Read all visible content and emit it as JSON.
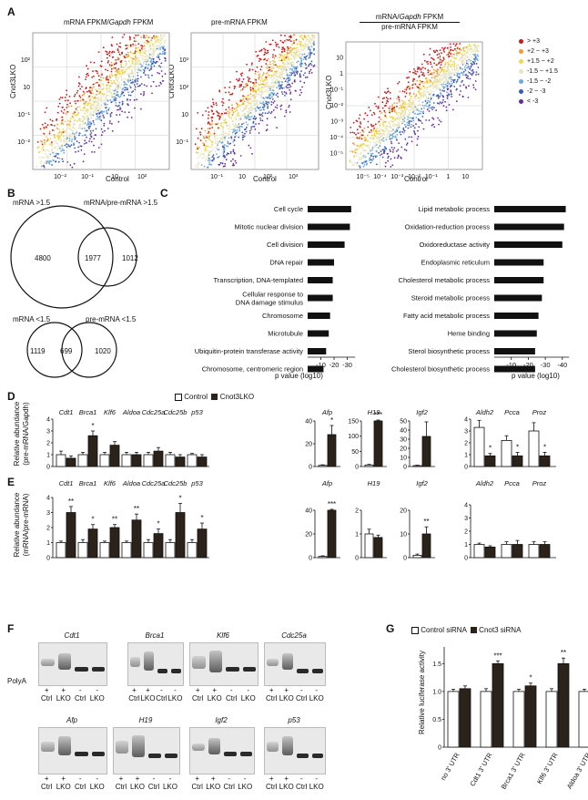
{
  "panels": {
    "A": "A",
    "B": "B",
    "C": "C",
    "D": "D",
    "E": "E",
    "F": "F",
    "G": "G"
  },
  "panelA": {
    "titles": [
      "mRNA FPKM/Gapdh FPKM",
      "pre-mRNA FPKM",
      "mRNA/Gapdh FPKM",
      "pre-mRNA FPKM"
    ],
    "title_parts": {
      "left_a": "mRNA FPKM/",
      "left_gapdh": "Gapdh",
      "left_b": " FPKM",
      "right_top_a": "mRNA/",
      "right_top_gapdh": "Gapdh",
      "right_top_b": " FPKM"
    },
    "xlabel": "Control",
    "ylabel": "Cnot3LKO",
    "legend": [
      {
        "label": "> +3",
        "color": "#c8191c"
      },
      {
        "label": "+2 ~ +3",
        "color": "#f39c35"
      },
      {
        "label": "+1.5 ~ +2",
        "color": "#f0d64b"
      },
      {
        "label": "-1.5 ~ +1.5",
        "color": "#e8e4bd"
      },
      {
        "label": "-1.5 ~ -2",
        "color": "#6fa8dc"
      },
      {
        "label": "-2 ~ -3",
        "color": "#3a5ab0"
      },
      {
        "label": "< -3",
        "color": "#6a2a9a"
      }
    ],
    "plot1": {
      "xticks": [
        "10⁻²",
        "10⁻¹",
        "10",
        "10²"
      ],
      "yticks": [
        "10²",
        "10",
        "10⁻¹",
        "10⁻²"
      ]
    },
    "plot2": {
      "xticks": [
        "10⁻¹",
        "10",
        "10²",
        "10³"
      ],
      "yticks": [
        "10³",
        "10²",
        "10",
        "10⁻¹"
      ]
    },
    "plot3": {
      "xticks": [
        "10⁻⁵",
        "10⁻⁴",
        "10⁻³",
        "10⁻²",
        "10⁻¹",
        "1",
        "10"
      ],
      "yticks": [
        "10",
        "1",
        "10⁻¹",
        "10⁻²",
        "10⁻³",
        "10⁻⁴",
        "10⁻⁵"
      ]
    }
  },
  "panelB": {
    "top": {
      "left_label": "mRNA >1.5",
      "right_label": "mRNA/pre-mRNA >1.5",
      "left_only": "4800",
      "overlap": "1977",
      "right_only": "1012"
    },
    "bottom": {
      "left_label": "mRNA <1.5",
      "right_label": "pre-mRNA <1.5",
      "left_only": "1119",
      "overlap": "699",
      "right_only": "1020"
    }
  },
  "panelC": {
    "xlabel": "p value (log10)",
    "left": {
      "xticks": [
        "-10",
        "-20",
        "-30"
      ],
      "terms": [
        "Cell cycle",
        "Mitotic nuclear division",
        "Cell division",
        "DNA repair",
        "Transcription, DNA-templated",
        "Cellular response to",
        "DNA damage stimulus",
        "Chromosome",
        "Microtubule",
        "Ubiquitin-protein transferase activity",
        "Chromosome, centromeric region"
      ],
      "values": [
        -33,
        -32,
        -28,
        -20,
        -19,
        -19,
        -17,
        -16,
        -14,
        -12
      ]
    },
    "right": {
      "xticks": [
        "-10",
        "-20",
        "-30",
        "-40"
      ],
      "terms": [
        "Lipid metabolic process",
        "Oxidation-reduction process",
        "Oxidoreductase activity",
        "Endoplasmic reticulum",
        "Cholesterol metabolic process",
        "Steroid metabolic process",
        "Fatty acid metabolic process",
        "Heme binding",
        "Sterol biosynthetic process",
        "Cholesterol biosynthetic process"
      ],
      "values": [
        -42,
        -41,
        -40,
        -29,
        -29,
        -28,
        -26,
        -25,
        -24,
        -24
      ]
    }
  },
  "panelD": {
    "legend": {
      "control": "Control",
      "lko": "Cnot3LKO"
    },
    "ylabel1": "Relative abundance",
    "ylabel2": "(pre-mRNA/Gapdh)"
  },
  "panelE": {
    "ylabel1": "Relative abundance",
    "ylabel2": "(mRNA/pre-mRNA)"
  },
  "chart_data": [
    {
      "type": "bar",
      "panel": "D1",
      "ylabel": "Relative abundance (pre-mRNA/Gapdh)",
      "ylim": [
        0,
        4
      ],
      "yticks": [
        "0",
        "1",
        "2",
        "3",
        "4"
      ],
      "categories": [
        "Cdt1",
        "Brca1",
        "Klf6",
        "Aldoa",
        "Cdc25a",
        "Cdc25b",
        "p53"
      ],
      "series": [
        {
          "name": "Control",
          "values": [
            1.0,
            1.0,
            1.0,
            1.0,
            1.0,
            1.0,
            1.0
          ]
        },
        {
          "name": "Cnot3LKO",
          "values": [
            0.7,
            2.6,
            1.8,
            1.0,
            1.3,
            0.8,
            0.8
          ]
        }
      ],
      "errors": [
        [
          0.3,
          0.2,
          0.2,
          0.2,
          0.2,
          0.2,
          0.1
        ],
        [
          0.2,
          0.4,
          0.3,
          0.2,
          0.3,
          0.2,
          0.2
        ]
      ],
      "significance": [
        "",
        "*",
        "",
        "",
        "",
        "",
        ""
      ]
    },
    {
      "type": "bar",
      "panel": "D2",
      "ylim": [
        0,
        40
      ],
      "yticks": [
        "0",
        "20",
        "40"
      ],
      "categories": [
        "Afp"
      ],
      "series": [
        {
          "name": "Control",
          "values": [
            1
          ]
        },
        {
          "name": "Cnot3LKO",
          "values": [
            28
          ]
        }
      ],
      "errors": [
        [
          0.5
        ],
        [
          8
        ]
      ],
      "significance": [
        "*"
      ]
    },
    {
      "type": "bar",
      "panel": "D3",
      "ylim": [
        0,
        150
      ],
      "yticks": [
        "0",
        "50",
        "100",
        "150"
      ],
      "categories": [
        "H19"
      ],
      "series": [
        {
          "name": "Control",
          "values": [
            5
          ]
        },
        {
          "name": "Cnot3LKO",
          "values": [
            150
          ]
        }
      ],
      "errors": [
        [
          2
        ],
        [
          20
        ]
      ],
      "significance": [
        "***"
      ]
    },
    {
      "type": "bar",
      "panel": "D4",
      "ylim": [
        0,
        50
      ],
      "yticks": [
        "0",
        "10",
        "20",
        "30",
        "40",
        "50"
      ],
      "categories": [
        "Igf2"
      ],
      "series": [
        {
          "name": "Control",
          "values": [
            1
          ]
        },
        {
          "name": "Cnot3LKO",
          "values": [
            33
          ]
        }
      ],
      "errors": [
        [
          0.5
        ],
        [
          16
        ]
      ],
      "significance": [
        ""
      ]
    },
    {
      "type": "bar",
      "panel": "D5",
      "ylim": [
        0,
        4
      ],
      "yticks": [
        "0",
        "1",
        "2",
        "3",
        "4"
      ],
      "categories": [
        "Aldh2",
        "Pcca",
        "Proz"
      ],
      "series": [
        {
          "name": "Control",
          "values": [
            3.3,
            2.2,
            3.0
          ]
        },
        {
          "name": "Cnot3LKO",
          "values": [
            0.9,
            0.9,
            0.9
          ]
        }
      ],
      "errors": [
        [
          0.6,
          0.4,
          0.7
        ],
        [
          0.2,
          0.3,
          0.3
        ]
      ],
      "significance": [
        "*",
        "*",
        "*"
      ]
    },
    {
      "type": "bar",
      "panel": "E1",
      "ylabel": "Relative abundance (mRNA/pre-mRNA)",
      "ylim": [
        0,
        4
      ],
      "yticks": [
        "0",
        "1",
        "2",
        "3",
        "4"
      ],
      "categories": [
        "Cdt1",
        "Brca1",
        "Klf6",
        "Aldoa",
        "Cdc25a",
        "Cdc25b",
        "p53"
      ],
      "series": [
        {
          "name": "Control",
          "values": [
            1.0,
            1.0,
            1.0,
            1.0,
            1.0,
            1.0,
            1.0
          ]
        },
        {
          "name": "Cnot3LKO",
          "values": [
            3.0,
            1.9,
            2.0,
            2.5,
            1.6,
            3.0,
            1.9
          ]
        }
      ],
      "errors": [
        [
          0.1,
          0.2,
          0.1,
          0.1,
          0.2,
          0.2,
          0.2
        ],
        [
          0.4,
          0.3,
          0.2,
          0.4,
          0.3,
          0.6,
          0.4
        ]
      ],
      "significance": [
        "**",
        "*",
        "**",
        "**",
        "*",
        "*",
        "*"
      ]
    },
    {
      "type": "bar",
      "panel": "E2",
      "ylim": [
        0,
        40
      ],
      "yticks": [
        "0",
        "20",
        "40"
      ],
      "categories": [
        "Afp"
      ],
      "series": [
        {
          "name": "Control",
          "values": [
            1
          ]
        },
        {
          "name": "Cnot3LKO",
          "values": [
            45
          ]
        }
      ],
      "errors": [
        [
          0.5
        ],
        [
          5
        ]
      ],
      "significance": [
        "***"
      ]
    },
    {
      "type": "bar",
      "panel": "E3",
      "ylim": [
        0,
        2
      ],
      "yticks": [
        "0",
        "1",
        "2"
      ],
      "categories": [
        "H19"
      ],
      "series": [
        {
          "name": "Control",
          "values": [
            1.0
          ]
        },
        {
          "name": "Cnot3LKO",
          "values": [
            0.85
          ]
        }
      ],
      "errors": [
        [
          0.2
        ],
        [
          0.1
        ]
      ],
      "significance": [
        ""
      ]
    },
    {
      "type": "bar",
      "panel": "E4",
      "ylim": [
        0,
        20
      ],
      "yticks": [
        "0",
        "10",
        "20"
      ],
      "categories": [
        "Igf2"
      ],
      "series": [
        {
          "name": "Control",
          "values": [
            1
          ]
        },
        {
          "name": "Cnot3LKO",
          "values": [
            10
          ]
        }
      ],
      "errors": [
        [
          0.5
        ],
        [
          3
        ]
      ],
      "significance": [
        "**"
      ]
    },
    {
      "type": "bar",
      "panel": "E5",
      "ylim": [
        0,
        4
      ],
      "yticks": [
        "0",
        "1",
        "2",
        "3",
        "4"
      ],
      "categories": [
        "Aldh2",
        "Pcca",
        "Proz"
      ],
      "series": [
        {
          "name": "Control",
          "values": [
            1.0,
            1.0,
            1.0
          ]
        },
        {
          "name": "Cnot3LKO",
          "values": [
            0.8,
            1.0,
            1.0
          ]
        }
      ],
      "errors": [
        [
          0.1,
          0.2,
          0.2
        ],
        [
          0.1,
          0.3,
          0.2
        ]
      ],
      "significance": [
        "",
        "",
        ""
      ]
    },
    {
      "type": "bar",
      "panel": "G",
      "ylabel": "Relative luciferase activity",
      "ylim": [
        0,
        1.8
      ],
      "yticks": [
        "0",
        "0.5",
        "1.0",
        "1.5"
      ],
      "categories": [
        "no 3' UTR",
        "Cdt1 3' UTR",
        "Brca1 3' UTR",
        "Klf6 3' UTR",
        "Aldoa 3' UTR"
      ],
      "series": [
        {
          "name": "Control siRNA",
          "values": [
            1.0,
            1.0,
            1.0,
            1.0,
            1.0
          ]
        },
        {
          "name": "Cnot3 siRNA",
          "values": [
            1.05,
            1.5,
            1.1,
            1.5,
            1.25
          ]
        }
      ],
      "errors": [
        [
          0.04,
          0.05,
          0.04,
          0.05,
          0.04
        ],
        [
          0.05,
          0.05,
          0.05,
          0.1,
          0.08
        ]
      ],
      "significance": [
        "",
        "***",
        "*",
        "**",
        "*"
      ]
    }
  ],
  "panelF": {
    "gels": [
      {
        "gene": "Cdt1"
      },
      {
        "gene": "Brca1"
      },
      {
        "gene": "Klf6"
      },
      {
        "gene": "Cdc25a"
      },
      {
        "gene": "Afp"
      },
      {
        "gene": "H19"
      },
      {
        "gene": "Igf2"
      },
      {
        "gene": "p53"
      }
    ],
    "polyA_label": "PolyA",
    "polyA": [
      "+",
      "+",
      "-",
      "-"
    ],
    "lanes": [
      "Ctrl",
      "LKO",
      "Ctrl",
      "LKO"
    ]
  },
  "panelG": {
    "legend": {
      "control": "Control siRNA",
      "kd": "Cnot3 siRNA"
    }
  }
}
